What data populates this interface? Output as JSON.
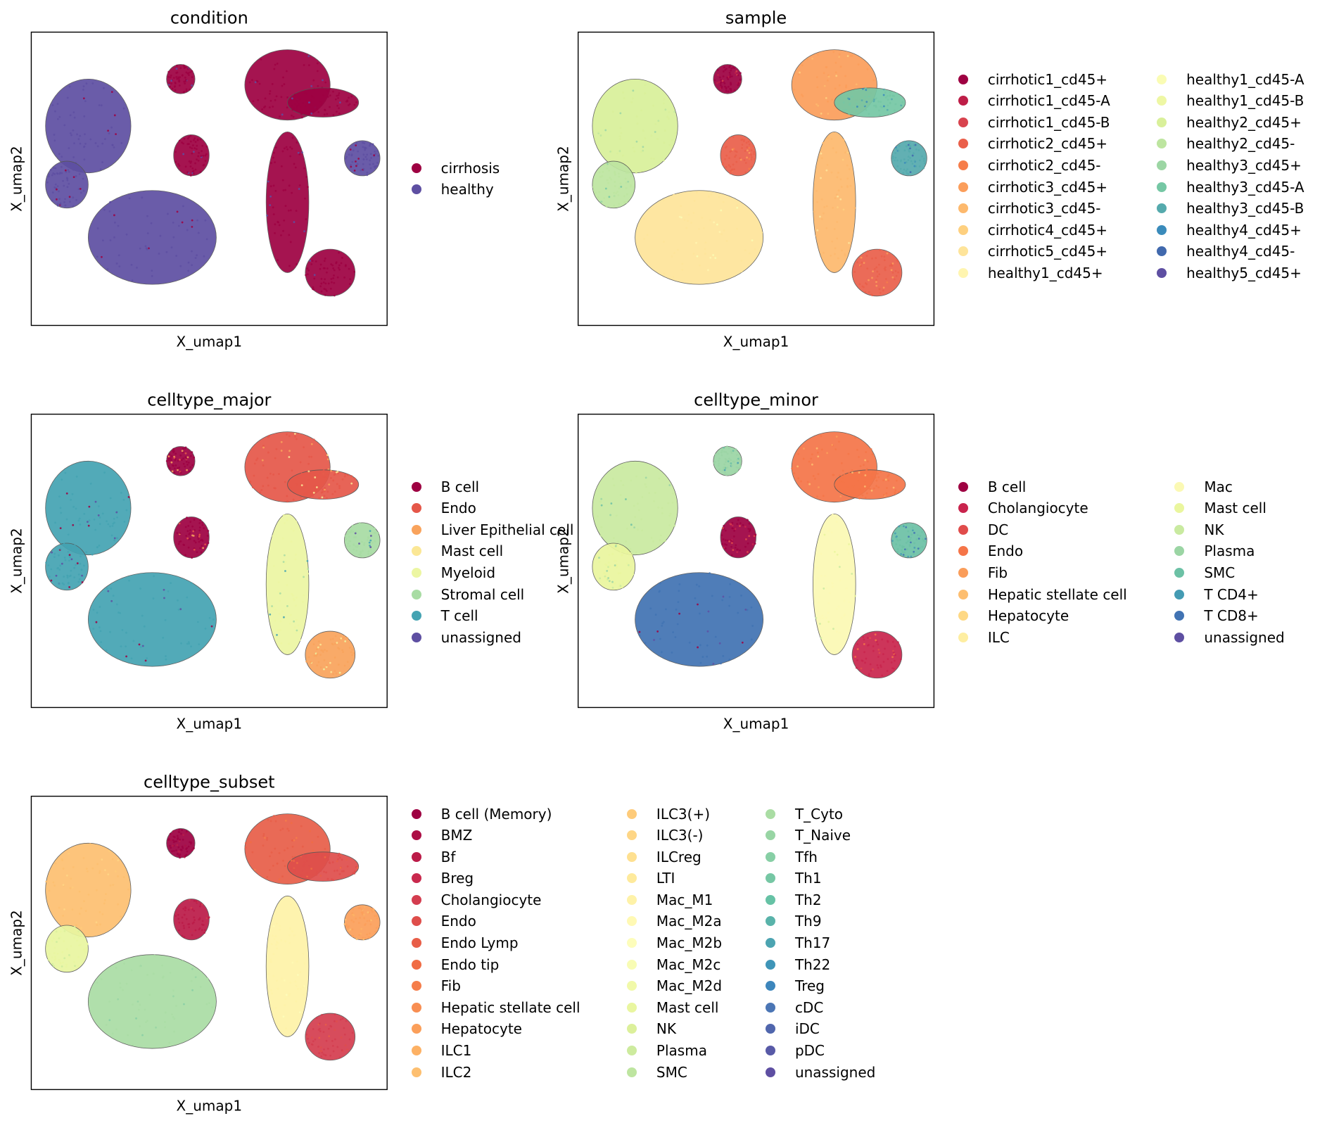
{
  "figure": {
    "type": "umap_embedding_grid"
  },
  "chart_data": [
    {
      "type": "scatter",
      "title": "condition",
      "xlabel": "X_umap1",
      "ylabel": "X_umap2",
      "grid": false,
      "legend_placement": "right",
      "legend_columns": 1,
      "categories": [
        "cirrhosis",
        "healthy"
      ],
      "colors": [
        "#9e0142",
        "#5e4fa2"
      ]
    },
    {
      "type": "scatter",
      "title": "sample",
      "xlabel": "X_umap1",
      "ylabel": "X_umap2",
      "grid": false,
      "legend_placement": "right",
      "legend_columns": 2,
      "categories": [
        "cirrhotic1_cd45+",
        "cirrhotic1_cd45-A",
        "cirrhotic1_cd45-B",
        "cirrhotic2_cd45+",
        "cirrhotic2_cd45-",
        "cirrhotic3_cd45+",
        "cirrhotic3_cd45-",
        "cirrhotic4_cd45+",
        "cirrhotic5_cd45+",
        "healthy1_cd45+",
        "healthy1_cd45-A",
        "healthy1_cd45-B",
        "healthy2_cd45+",
        "healthy2_cd45-",
        "healthy3_cd45+",
        "healthy3_cd45-A",
        "healthy3_cd45-B",
        "healthy4_cd45+",
        "healthy4_cd45-",
        "healthy5_cd45+"
      ],
      "colors": [
        "#9e0142",
        "#be1e48",
        "#d8434e",
        "#ea5f4a",
        "#f67d4a",
        "#fb9e5b",
        "#fdb96d",
        "#fed07f",
        "#fee49a",
        "#fff5b0",
        "#fafcb4",
        "#eef7a4",
        "#d9f09a",
        "#bde5a0",
        "#9cd6a4",
        "#75c7a4",
        "#55aaad",
        "#3a8bbb",
        "#4169ad",
        "#5e4fa2"
      ]
    },
    {
      "type": "scatter",
      "title": "celltype_major",
      "xlabel": "X_umap1",
      "ylabel": "X_umap2",
      "grid": false,
      "legend_placement": "right",
      "legend_columns": 1,
      "categories": [
        "B cell",
        "Endo",
        "Liver Epithelial cell",
        "Mast cell",
        "Myeloid",
        "Stromal cell",
        "T cell",
        "unassigned"
      ],
      "colors": [
        "#9e0142",
        "#e55749",
        "#f9a35c",
        "#fbe795",
        "#ecf6a2",
        "#a8dca3",
        "#44a3b2",
        "#5e4fa2"
      ]
    },
    {
      "type": "scatter",
      "title": "celltype_minor",
      "xlabel": "X_umap1",
      "ylabel": "X_umap2",
      "grid": false,
      "legend_placement": "right",
      "legend_columns": 2,
      "categories": [
        "B cell",
        "Cholangiocyte",
        "DC",
        "Endo",
        "Fib",
        "Hepatic stellate cell",
        "Hepatocyte",
        "ILC",
        "Mac",
        "Mast cell",
        "NK",
        "Plasma",
        "SMC",
        "T CD4+",
        "T CD8+",
        "unassigned"
      ],
      "colors": [
        "#9e0142",
        "#c9244d",
        "#e04c4b",
        "#f57548",
        "#fa9d5a",
        "#fdbe70",
        "#fed884",
        "#feeea1",
        "#fbf9b4",
        "#eaf69e",
        "#c9eaa0",
        "#9bd5a4",
        "#6cc1a5",
        "#449bb3",
        "#4173b3",
        "#5e4fa2"
      ]
    },
    {
      "type": "scatter",
      "title": "celltype_subset",
      "xlabel": "X_umap1",
      "ylabel": "X_umap2",
      "grid": false,
      "legend_placement": "right",
      "legend_columns": 3,
      "categories": [
        "B cell (Memory)",
        "BMZ",
        "Bf",
        "Breg",
        "Cholangiocyte",
        "Endo",
        "Endo Lymp",
        "Endo tip",
        "Fib",
        "Hepatic stellate cell",
        "Hepatocyte",
        "ILC1",
        "ILC2",
        "ILC3(+)",
        "ILC3(-)",
        "ILCreg",
        "LTI",
        "Mac_M1",
        "Mac_M2a",
        "Mac_M2b",
        "Mac_M2c",
        "Mac_M2d",
        "Mast cell",
        "NK",
        "Plasma",
        "SMC",
        "T_Cyto",
        "T_Naive",
        "Tfh",
        "Th1",
        "Th2",
        "Th9",
        "Th17",
        "Th22",
        "Treg",
        "cDC",
        "iDC",
        "pDC",
        "unassigned"
      ],
      "colors": [
        "#9e0142",
        "#ac0e45",
        "#bb1b48",
        "#c9294d",
        "#d43d4f",
        "#df4e4b",
        "#e85e48",
        "#f06c44",
        "#f57d4a",
        "#f88e52",
        "#fb9f5a",
        "#fdb164",
        "#fdbf70",
        "#fecb7a",
        "#fed686",
        "#fee090",
        "#feea9c",
        "#fef2a8",
        "#fff9b4",
        "#fdfdbb",
        "#f8fcb4",
        "#f1f9a9",
        "#e9f6a0",
        "#dcf09b",
        "#cdeb9e",
        "#bee5a0",
        "#aadda4",
        "#98d5a4",
        "#87cfa5",
        "#76c7a4",
        "#66c2a5",
        "#59b3aa",
        "#4ca4b1",
        "#3f95b8",
        "#3d86bc",
        "#4b76b5",
        "#5066ad",
        "#585aa7",
        "#5e4fa2"
      ]
    }
  ]
}
